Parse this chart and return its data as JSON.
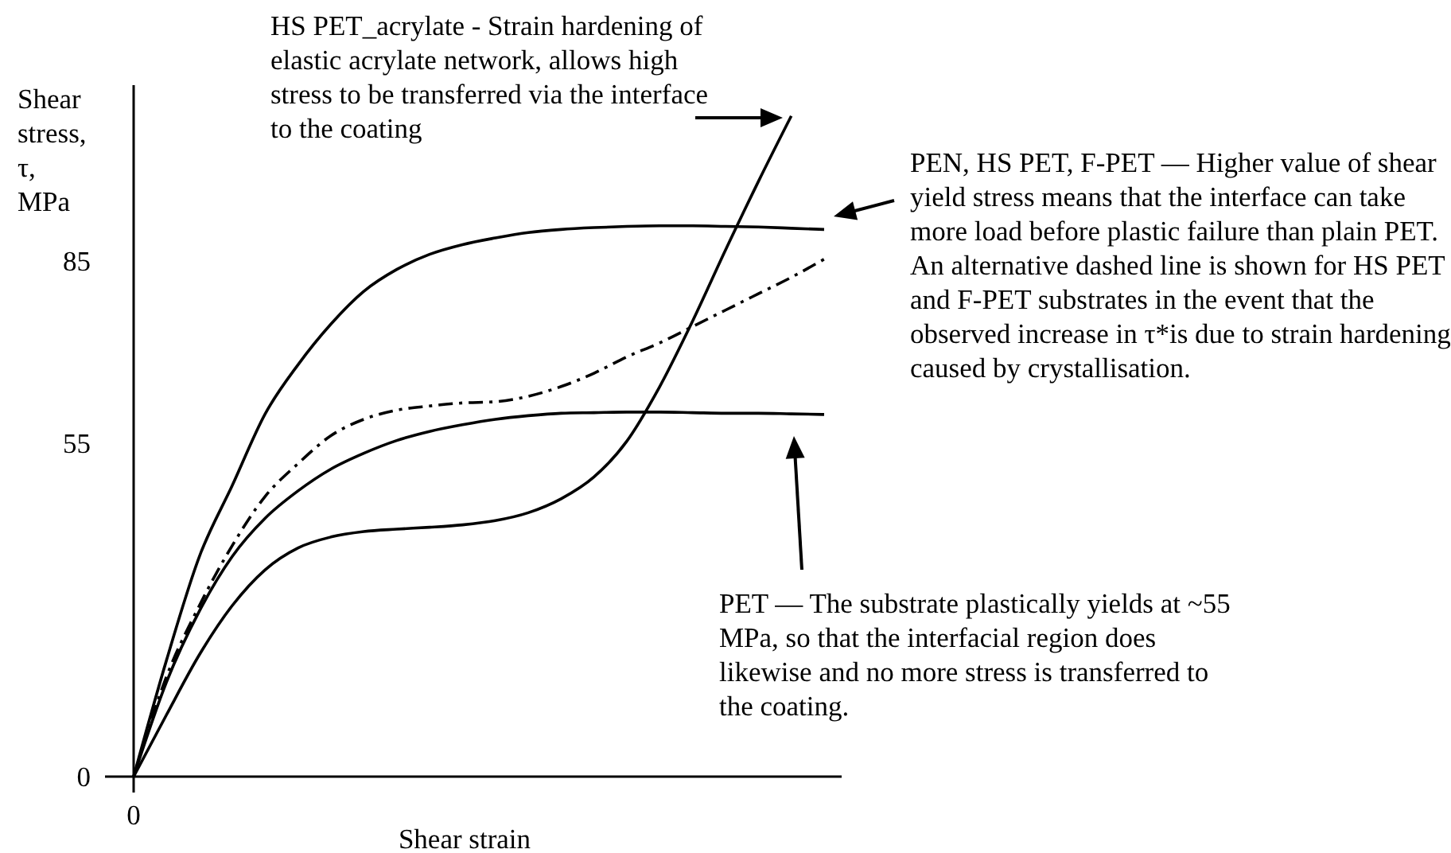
{
  "chart_data": {
    "type": "line",
    "xlabel": "Shear strain",
    "ylabel": "Shear stress, τ, MPa",
    "categories": [
      "0",
      null,
      null,
      null,
      null,
      null,
      null,
      null,
      null,
      null,
      null,
      null,
      null,
      null,
      null,
      null,
      null,
      null,
      null,
      null,
      null,
      null
    ],
    "ylim": [
      0,
      114
    ],
    "yticks": [
      0,
      55,
      85
    ],
    "grid": false,
    "series": [
      {
        "color": "#000000",
        "values": [
          0,
          19.2,
          36.3,
          48,
          59.8,
          67.9,
          74.6,
          80,
          83.6,
          86.1,
          87.7,
          88.8,
          89.7,
          90.2,
          90.5,
          90.7,
          90.8,
          90.8,
          90.7,
          90.6,
          90.4,
          90.2
        ]
      },
      {
        "color": "#000000",
        "line_style": "dashed",
        "values": [
          0,
          16.5,
          28.2,
          38.1,
          46.2,
          51.6,
          56.2,
          58.9,
          60.4,
          61.1,
          61.6,
          61.8,
          62.7,
          64.3,
          66.5,
          69.2,
          71.5,
          74.2,
          76.9,
          79.6,
          82.3,
          85.3
        ]
      },
      {
        "color": "#000000",
        "values": [
          0,
          15.6,
          27.3,
          36.3,
          42.6,
          47.1,
          50.7,
          53.3,
          55.4,
          56.9,
          58,
          58.9,
          59.5,
          59.9,
          60,
          60.1,
          60.1,
          60,
          59.9,
          59.9,
          59.8,
          59.7
        ]
      },
      {
        "color": "#000000",
        "values": [
          0,
          10.2,
          20.1,
          28.2,
          34.1,
          37.7,
          39.5,
          40.4,
          40.8,
          41.1,
          41.5,
          42.2,
          43.5,
          45.8,
          49.4,
          55.3,
          64.3,
          75.1,
          86.8,
          98.1,
          108.9,
          null
        ]
      }
    ],
    "annotations": [
      "HS PET_acrylate - Strain hardening of elastic acrylate network, allows high stress to be transferred via the interface to the coating",
      "PEN, HS PET, F-PET — Higher value of shear yield stress means that the interface can take more load before plastic failure than plain PET. An alternative dashed line is shown for HS PET and F-PET substrates in the event that the observed increase in τ*is due to strain hardening caused by crystallisation.",
      "PET — The substrate plastically yields at ~55 MPa, so that the interfacial region does likewise and no more stress is transferred to the coating."
    ]
  }
}
